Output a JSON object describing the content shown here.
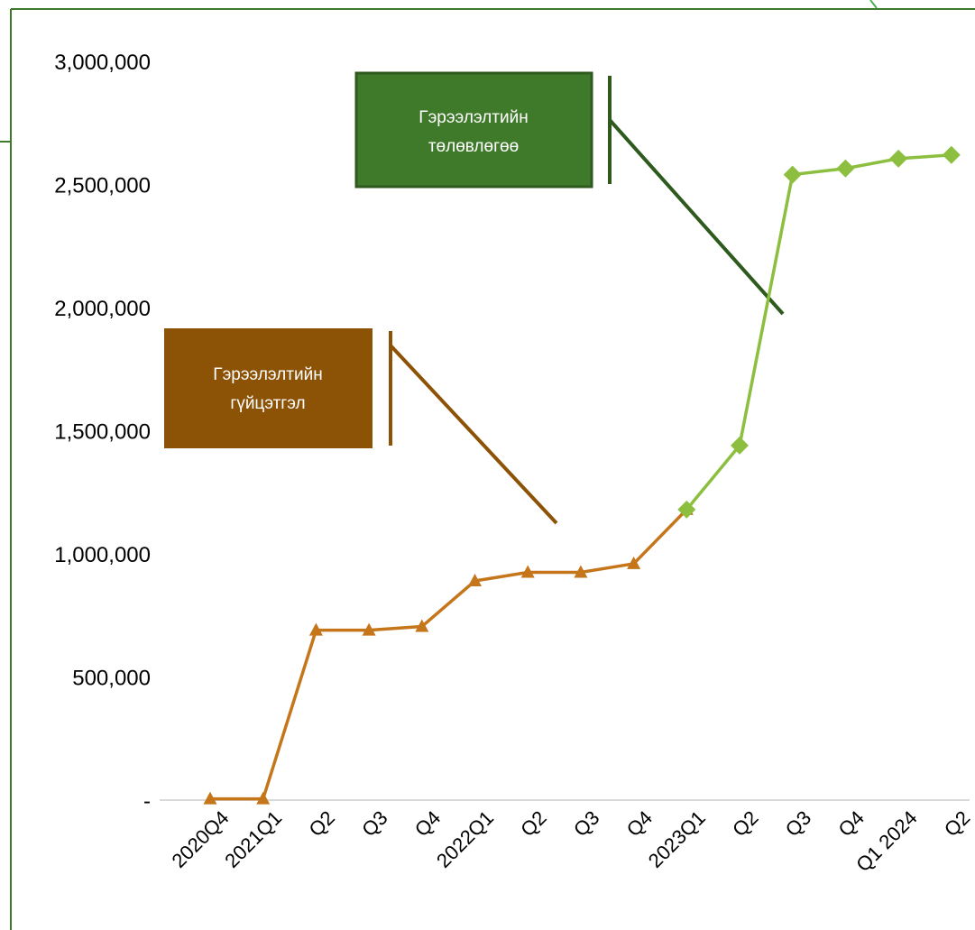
{
  "chart_data": {
    "type": "line",
    "categories": [
      "2020Q4",
      "2021Q1",
      "Q2",
      "Q3",
      "Q4",
      "2022Q1",
      "Q2",
      "Q3",
      "Q4",
      "2023Q1",
      "Q2",
      "Q3",
      "Q4",
      "Q1 2024",
      "Q2"
    ],
    "ylim": [
      0,
      3000000
    ],
    "yticks": [
      {
        "value": 0,
        "label": "-"
      },
      {
        "value": 500000,
        "label": "500,000"
      },
      {
        "value": 1000000,
        "label": "1,000,000"
      },
      {
        "value": 1500000,
        "label": "1,500,000"
      },
      {
        "value": 2000000,
        "label": "2,000,000"
      },
      {
        "value": 2500000,
        "label": "2,500,000"
      },
      {
        "value": 3000000,
        "label": "3,000,000"
      }
    ],
    "grid": false,
    "series": [
      {
        "name": "Гэрээлэлтийн гүйцэтгэл",
        "color": "#c5761a",
        "marker": "triangle",
        "values": [
          5000,
          5000,
          690000,
          690000,
          705000,
          890000,
          925000,
          925000,
          960000,
          1180000,
          null,
          null,
          null,
          null,
          null
        ]
      },
      {
        "name": "Гэрээлэлтийн төлөвлөгөө",
        "color": "#8cbf3f",
        "marker": "diamond",
        "values": [
          null,
          null,
          null,
          null,
          null,
          null,
          null,
          null,
          null,
          1180000,
          1440000,
          2540000,
          2565000,
          2605000,
          2620000
        ]
      }
    ],
    "annotations": [
      {
        "text_lines": [
          "Гэрээлэлтийн",
          "төлөвлөгөө"
        ],
        "fill": "#3f7a2b",
        "series": 1
      },
      {
        "text_lines": [
          "Гэрээлэлтийн",
          "гүйцэтгэл"
        ],
        "fill": "#8c5206",
        "series": 0
      }
    ]
  }
}
